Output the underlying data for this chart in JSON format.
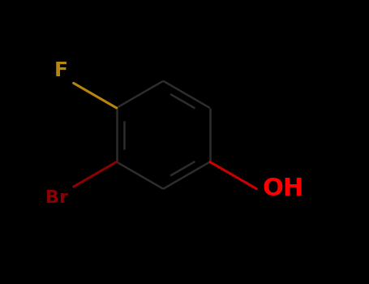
{
  "bg_color": "#000000",
  "bond_color": "#1a1a1a",
  "bond_color_visible": "#2d2d2d",
  "F_color": "#B8860B",
  "F_bond_color": "#B8860B",
  "Br_color": "#8B0000",
  "Br_bond_color": "#8B0000",
  "OH_color": "#FF0000",
  "OH_bond_color": "#CC0000",
  "ring_lw": 1.8,
  "sub_lw": 2.2,
  "font_size_F": 18,
  "font_size_Br": 16,
  "font_size_OH": 22,
  "figsize": [
    4.55,
    3.5
  ],
  "dpi": 100,
  "xlim": [
    -1.0,
    1.0
  ],
  "ylim": [
    -1.0,
    1.0
  ]
}
